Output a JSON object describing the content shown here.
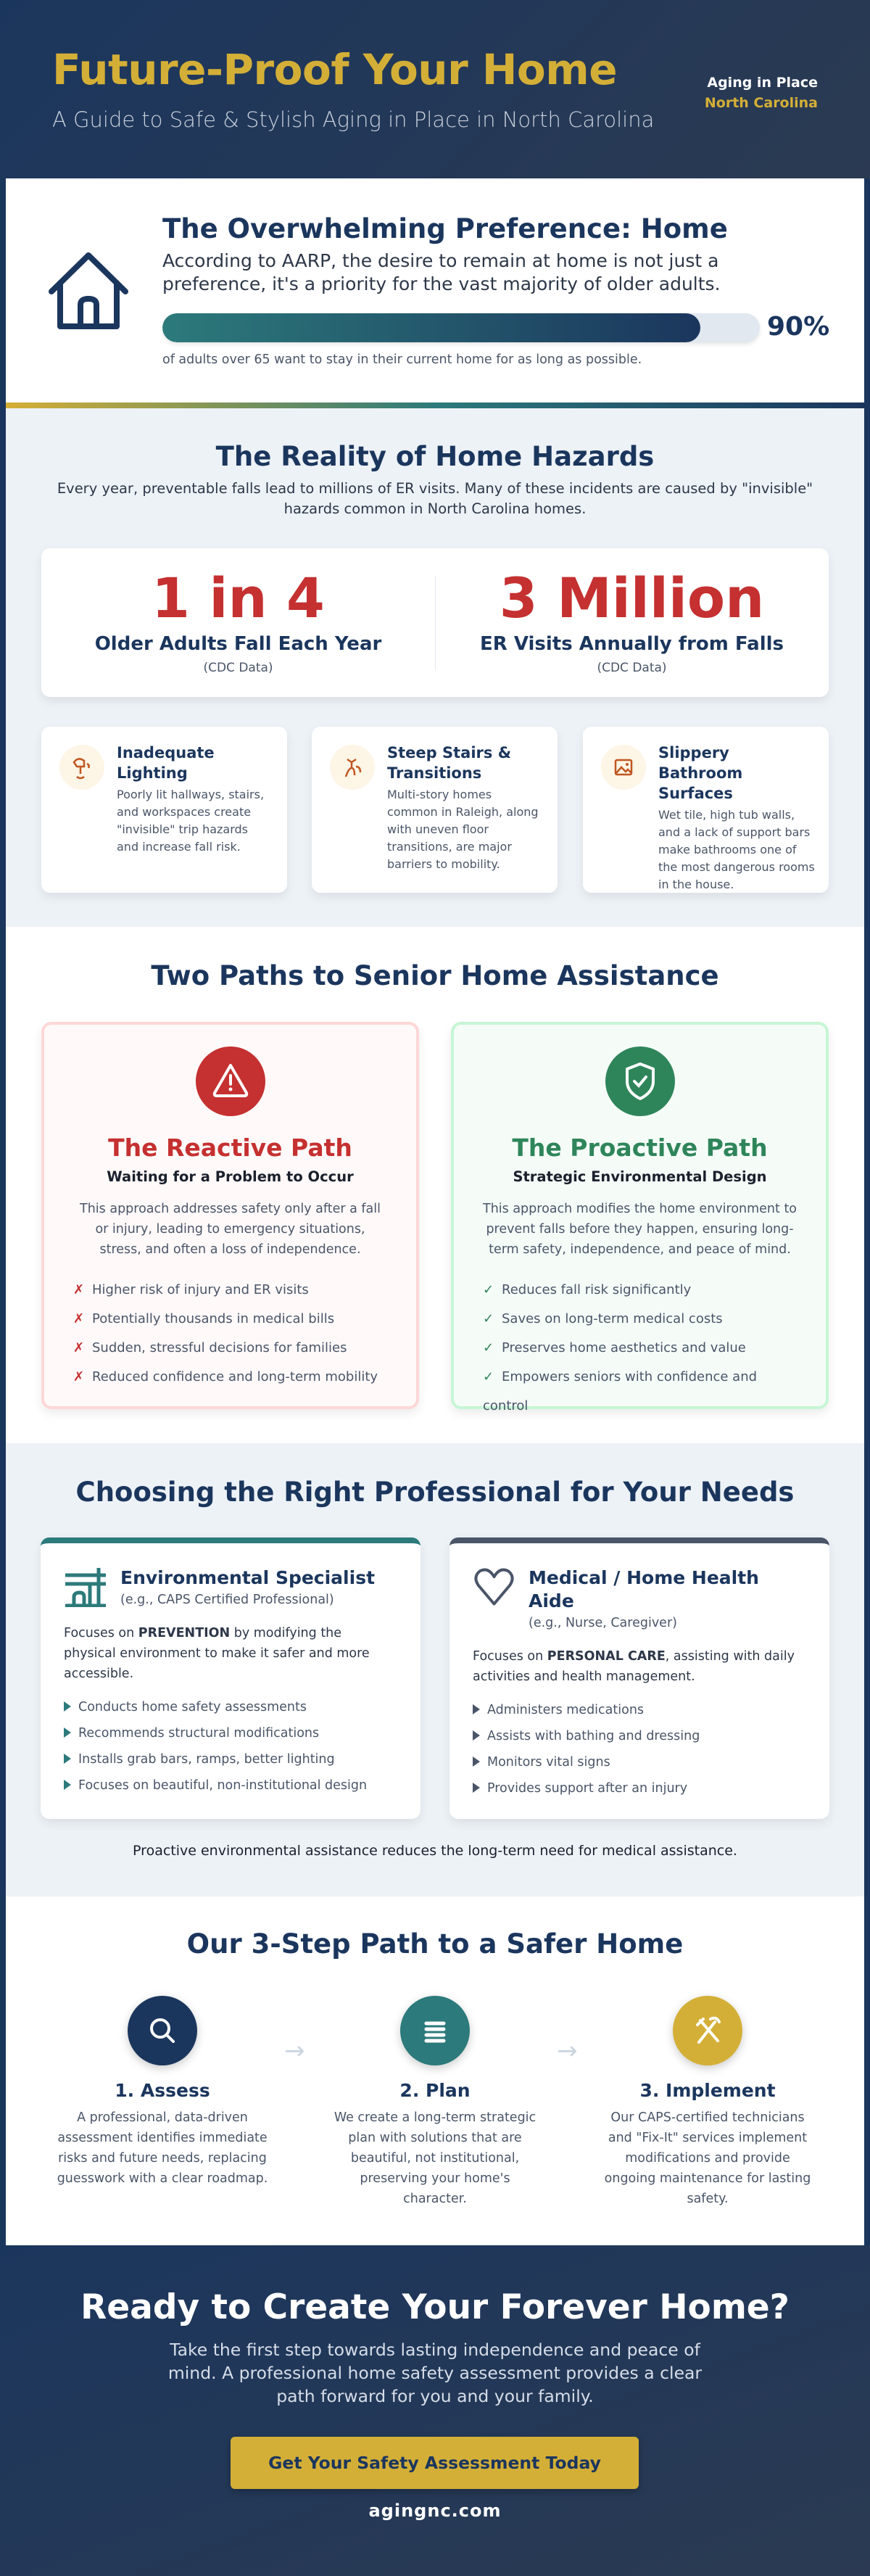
{
  "header": {
    "title": "Future-Proof Your Home",
    "subtitle": "A Guide to Safe & Stylish Aging in Place in North Carolina",
    "badge_line1": "Aging in Place",
    "badge_line2": "North Carolina"
  },
  "preference": {
    "icon": "house-icon",
    "title": "The Overwhelming Preference: Home",
    "text": "According to AARP, the desire to remain at home is not just a preference, it's a priority for the vast majority of older adults.",
    "percent": 90,
    "percent_label": "90%",
    "caption": "of adults over 65 want to stay in their current home for as long as possible."
  },
  "hazards": {
    "title": "The Reality of Home Hazards",
    "intro": "Every year, preventable falls lead to millions of ER visits. Many of these incidents are caused by \"invisible\" hazards common in North Carolina homes.",
    "stats": [
      {
        "value": "1 in 4",
        "label": "Older Adults Fall Each Year",
        "source": "(CDC Data)"
      },
      {
        "value": "3 Million",
        "label": "ER Visits Annually from Falls",
        "source": "(CDC Data)"
      }
    ],
    "items": [
      {
        "icon": "lamp-icon",
        "title": "Inadequate Lighting",
        "desc": "Poorly lit hallways, stairs, and workspaces create \"invisible\" trip hazards and increase fall risk."
      },
      {
        "icon": "stairs-icon",
        "title": "Steep Stairs & Transitions",
        "desc": "Multi-story homes common in Raleigh, along with uneven floor transitions, are major barriers to mobility."
      },
      {
        "icon": "image-icon",
        "title": "Slippery Bathroom Surfaces",
        "desc": "Wet tile, high tub walls, and a lack of support bars make bathrooms one of the most dangerous rooms in the house."
      }
    ]
  },
  "paths": {
    "title": "Two Paths to Senior Home Assistance",
    "reactive": {
      "icon": "warning-icon",
      "title": "The Reactive Path",
      "subtitle": "Waiting for a Problem to Occur",
      "text": "This approach addresses safety only after a fall or injury, leading to emergency situations, stress, and often a loss of independence.",
      "marker": "✗",
      "items": [
        "Higher risk of injury and ER visits",
        "Potentially thousands in medical bills",
        "Sudden, stressful decisions for families",
        "Reduced confidence and long-term mobility"
      ]
    },
    "proactive": {
      "icon": "shield-check-icon",
      "title": "The Proactive Path",
      "subtitle": "Strategic Environmental Design",
      "text": "This approach modifies the home environment to prevent falls before they happen, ensuring long-term safety, independence, and peace of mind.",
      "marker": "✓",
      "items": [
        "Reduces fall risk significantly",
        "Saves on long-term medical costs",
        "Preserves home aesthetics and value",
        "Empowers seniors with confidence and control"
      ]
    }
  },
  "professionals": {
    "title": "Choosing the Right Professional for Your Needs",
    "cards": [
      {
        "icon": "building-icon",
        "title": "Environmental Specialist",
        "subtitle": "(e.g., CAPS Certified Professional)",
        "pre": "Focuses on ",
        "bold": "PREVENTION",
        "post": " by modifying the physical environment to make it safer and more accessible.",
        "items": [
          "Conducts home safety assessments",
          "Recommends structural modifications",
          "Installs grab bars, ramps, better lighting",
          "Focuses on beautiful, non-institutional design"
        ]
      },
      {
        "icon": "heart-icon",
        "title": "Medical / Home Health Aide",
        "subtitle": "(e.g., Nurse, Caregiver)",
        "pre": "Focuses on ",
        "bold": "PERSONAL CARE",
        "post": ", assisting with daily activities and health management.",
        "items": [
          "Administers medications",
          "Assists with bathing and dressing",
          "Monitors vital signs",
          "Provides support after an injury"
        ]
      }
    ],
    "note": "Proactive environmental assistance reduces the long-term need for medical assistance."
  },
  "steps": {
    "title": "Our 3-Step Path to a Safer Home",
    "items": [
      {
        "icon": "search-icon",
        "title": "1. Assess",
        "desc": "A professional, data-driven assessment identifies immediate risks and future needs, replacing guesswork with a clear roadmap."
      },
      {
        "icon": "list-icon",
        "title": "2. Plan",
        "desc": "We create a long-term strategic plan with solutions that are beautiful, not institutional, preserving your home's character."
      },
      {
        "icon": "tools-icon",
        "title": "3. Implement",
        "desc": "Our CAPS-certified technicians and \"Fix-It\" services implement modifications and provide ongoing maintenance for lasting safety."
      }
    ]
  },
  "cta": {
    "title": "Ready to Create Your Forever Home?",
    "text": "Take the first step towards lasting independence and peace of mind. A professional home safety assessment provides a clear path forward for you and your family.",
    "button": "Get Your Safety Assessment Today",
    "url": "agingnc.com"
  },
  "colors": {
    "navy": "#1b365d",
    "gold": "#d4af37",
    "teal": "#2c7a7b",
    "red": "#c53030",
    "green": "#2f855a"
  }
}
